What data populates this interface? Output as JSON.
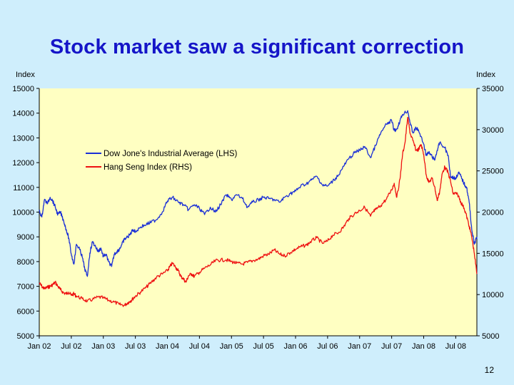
{
  "slide": {
    "title": "Stock market saw a significant correction",
    "page_number": "12"
  },
  "colors": {
    "background": "#cfeefc",
    "title": "#1515c8",
    "plot_background": "#ffffc2",
    "dow": "#1a2fd6",
    "hsi": "#ee1111"
  },
  "chart_data": {
    "type": "line",
    "title": "",
    "left_axis": {
      "label": "Index",
      "ylim": [
        5000,
        15000
      ],
      "ticks": [
        5000,
        6000,
        7000,
        8000,
        9000,
        10000,
        11000,
        12000,
        13000,
        14000,
        15000
      ]
    },
    "right_axis": {
      "label": "Index",
      "ylim": [
        5000,
        35000
      ],
      "ticks": [
        5000,
        10000,
        15000,
        20000,
        25000,
        30000,
        35000
      ]
    },
    "x_axis": {
      "tick_labels": [
        "Jan 02",
        "Jul 02",
        "Jan 03",
        "Jul 03",
        "Jan 04",
        "Jul 04",
        "Jan 05",
        "Jul 05",
        "Jan 06",
        "Jul 06",
        "Jan 07",
        "Jul 07",
        "Jan 08",
        "Jul 08"
      ],
      "tick_values": [
        2002.0,
        2002.5,
        2003.0,
        2003.5,
        2004.0,
        2004.5,
        2005.0,
        2005.5,
        2006.0,
        2006.5,
        2007.0,
        2007.5,
        2008.0,
        2008.5
      ],
      "xlim": [
        2002.0,
        2008.83
      ]
    },
    "legend": {
      "placement": "upper-left"
    },
    "grid": false,
    "series": [
      {
        "name": "Dow Jone's Industrial Average (LHS)",
        "axis": "left",
        "points": [
          [
            2002.0,
            10050
          ],
          [
            2002.04,
            9800
          ],
          [
            2002.08,
            10500
          ],
          [
            2002.13,
            10350
          ],
          [
            2002.17,
            10600
          ],
          [
            2002.21,
            10450
          ],
          [
            2002.25,
            10200
          ],
          [
            2002.29,
            9900
          ],
          [
            2002.33,
            10000
          ],
          [
            2002.38,
            9650
          ],
          [
            2002.42,
            9300
          ],
          [
            2002.46,
            8950
          ],
          [
            2002.5,
            8300
          ],
          [
            2002.54,
            7900
          ],
          [
            2002.58,
            8700
          ],
          [
            2002.63,
            8500
          ],
          [
            2002.67,
            8200
          ],
          [
            2002.71,
            7700
          ],
          [
            2002.75,
            7400
          ],
          [
            2002.79,
            8350
          ],
          [
            2002.83,
            8800
          ],
          [
            2002.88,
            8600
          ],
          [
            2002.92,
            8400
          ],
          [
            2002.96,
            8550
          ],
          [
            2003.0,
            8200
          ],
          [
            2003.04,
            8300
          ],
          [
            2003.08,
            8000
          ],
          [
            2003.13,
            7800
          ],
          [
            2003.17,
            8300
          ],
          [
            2003.21,
            8400
          ],
          [
            2003.25,
            8500
          ],
          [
            2003.29,
            8700
          ],
          [
            2003.33,
            8900
          ],
          [
            2003.38,
            9000
          ],
          [
            2003.42,
            9100
          ],
          [
            2003.46,
            9300
          ],
          [
            2003.5,
            9200
          ],
          [
            2003.58,
            9400
          ],
          [
            2003.67,
            9500
          ],
          [
            2003.75,
            9600
          ],
          [
            2003.83,
            9700
          ],
          [
            2003.92,
            10000
          ],
          [
            2004.0,
            10450
          ],
          [
            2004.08,
            10600
          ],
          [
            2004.17,
            10400
          ],
          [
            2004.25,
            10300
          ],
          [
            2004.33,
            10100
          ],
          [
            2004.42,
            10300
          ],
          [
            2004.5,
            10150
          ],
          [
            2004.58,
            9900
          ],
          [
            2004.67,
            10200
          ],
          [
            2004.75,
            10000
          ],
          [
            2004.83,
            10300
          ],
          [
            2004.92,
            10700
          ],
          [
            2005.0,
            10500
          ],
          [
            2005.08,
            10700
          ],
          [
            2005.17,
            10550
          ],
          [
            2005.25,
            10200
          ],
          [
            2005.33,
            10400
          ],
          [
            2005.42,
            10500
          ],
          [
            2005.5,
            10600
          ],
          [
            2005.58,
            10550
          ],
          [
            2005.67,
            10500
          ],
          [
            2005.75,
            10400
          ],
          [
            2005.83,
            10600
          ],
          [
            2005.92,
            10750
          ],
          [
            2006.0,
            10850
          ],
          [
            2006.08,
            11050
          ],
          [
            2006.17,
            11150
          ],
          [
            2006.25,
            11300
          ],
          [
            2006.33,
            11450
          ],
          [
            2006.42,
            11100
          ],
          [
            2006.5,
            11050
          ],
          [
            2006.58,
            11250
          ],
          [
            2006.67,
            11500
          ],
          [
            2006.75,
            11850
          ],
          [
            2006.83,
            12150
          ],
          [
            2006.92,
            12400
          ],
          [
            2007.0,
            12500
          ],
          [
            2007.08,
            12650
          ],
          [
            2007.17,
            12200
          ],
          [
            2007.25,
            12700
          ],
          [
            2007.33,
            13200
          ],
          [
            2007.42,
            13550
          ],
          [
            2007.5,
            13700
          ],
          [
            2007.54,
            13300
          ],
          [
            2007.58,
            13350
          ],
          [
            2007.63,
            13700
          ],
          [
            2007.67,
            13950
          ],
          [
            2007.75,
            14100
          ],
          [
            2007.79,
            13600
          ],
          [
            2007.83,
            13200
          ],
          [
            2007.88,
            13400
          ],
          [
            2007.92,
            13300
          ],
          [
            2008.0,
            12750
          ],
          [
            2008.04,
            12300
          ],
          [
            2008.08,
            12400
          ],
          [
            2008.13,
            12250
          ],
          [
            2008.17,
            12100
          ],
          [
            2008.21,
            12500
          ],
          [
            2008.25,
            12800
          ],
          [
            2008.33,
            12600
          ],
          [
            2008.38,
            12300
          ],
          [
            2008.42,
            11450
          ],
          [
            2008.46,
            11400
          ],
          [
            2008.5,
            11350
          ],
          [
            2008.54,
            11600
          ],
          [
            2008.58,
            11450
          ],
          [
            2008.63,
            11150
          ],
          [
            2008.67,
            11000
          ],
          [
            2008.71,
            10400
          ],
          [
            2008.75,
            9300
          ],
          [
            2008.79,
            8700
          ],
          [
            2008.83,
            9000
          ]
        ]
      },
      {
        "name": "Hang Seng Index (RHS)",
        "axis": "right",
        "points": [
          [
            2002.0,
            11400
          ],
          [
            2002.04,
            11000
          ],
          [
            2002.08,
            10700
          ],
          [
            2002.13,
            10900
          ],
          [
            2002.17,
            11000
          ],
          [
            2002.21,
            11200
          ],
          [
            2002.25,
            11500
          ],
          [
            2002.29,
            11000
          ],
          [
            2002.33,
            10600
          ],
          [
            2002.38,
            10200
          ],
          [
            2002.42,
            10100
          ],
          [
            2002.46,
            10300
          ],
          [
            2002.5,
            9900
          ],
          [
            2002.54,
            10100
          ],
          [
            2002.58,
            9800
          ],
          [
            2002.67,
            9500
          ],
          [
            2002.75,
            9200
          ],
          [
            2002.83,
            9400
          ],
          [
            2002.92,
            9700
          ],
          [
            2003.0,
            9600
          ],
          [
            2003.08,
            9300
          ],
          [
            2003.17,
            9100
          ],
          [
            2003.25,
            8800
          ],
          [
            2003.33,
            8700
          ],
          [
            2003.38,
            9000
          ],
          [
            2003.42,
            9200
          ],
          [
            2003.46,
            9500
          ],
          [
            2003.5,
            9800
          ],
          [
            2003.58,
            10300
          ],
          [
            2003.67,
            10900
          ],
          [
            2003.75,
            11500
          ],
          [
            2003.83,
            12100
          ],
          [
            2003.92,
            12500
          ],
          [
            2004.0,
            12900
          ],
          [
            2004.04,
            13400
          ],
          [
            2004.08,
            13800
          ],
          [
            2004.13,
            13300
          ],
          [
            2004.17,
            12900
          ],
          [
            2004.21,
            12200
          ],
          [
            2004.25,
            11900
          ],
          [
            2004.29,
            11500
          ],
          [
            2004.33,
            12300
          ],
          [
            2004.38,
            12500
          ],
          [
            2004.42,
            12200
          ],
          [
            2004.5,
            12700
          ],
          [
            2004.58,
            13200
          ],
          [
            2004.67,
            13600
          ],
          [
            2004.75,
            14100
          ],
          [
            2004.83,
            14200
          ],
          [
            2004.92,
            14200
          ],
          [
            2005.0,
            14000
          ],
          [
            2005.08,
            13800
          ],
          [
            2005.17,
            13700
          ],
          [
            2005.25,
            13900
          ],
          [
            2005.33,
            14100
          ],
          [
            2005.42,
            14300
          ],
          [
            2005.5,
            14700
          ],
          [
            2005.58,
            14900
          ],
          [
            2005.67,
            15400
          ],
          [
            2005.75,
            14900
          ],
          [
            2005.83,
            14700
          ],
          [
            2005.92,
            15100
          ],
          [
            2006.0,
            15500
          ],
          [
            2006.08,
            15800
          ],
          [
            2006.17,
            16000
          ],
          [
            2006.25,
            16500
          ],
          [
            2006.33,
            16900
          ],
          [
            2006.42,
            16200
          ],
          [
            2006.5,
            16500
          ],
          [
            2006.58,
            17200
          ],
          [
            2006.67,
            17500
          ],
          [
            2006.75,
            18200
          ],
          [
            2006.83,
            19200
          ],
          [
            2006.92,
            19800
          ],
          [
            2007.0,
            20200
          ],
          [
            2007.08,
            20600
          ],
          [
            2007.17,
            19500
          ],
          [
            2007.21,
            20000
          ],
          [
            2007.25,
            20300
          ],
          [
            2007.33,
            20800
          ],
          [
            2007.42,
            21600
          ],
          [
            2007.5,
            22700
          ],
          [
            2007.54,
            23500
          ],
          [
            2007.58,
            21800
          ],
          [
            2007.63,
            24000
          ],
          [
            2007.67,
            27000
          ],
          [
            2007.71,
            28500
          ],
          [
            2007.75,
            31500
          ],
          [
            2007.79,
            29500
          ],
          [
            2007.83,
            28700
          ],
          [
            2007.88,
            27500
          ],
          [
            2007.92,
            27600
          ],
          [
            2007.96,
            28200
          ],
          [
            2008.0,
            27000
          ],
          [
            2008.04,
            24500
          ],
          [
            2008.08,
            23600
          ],
          [
            2008.13,
            24100
          ],
          [
            2008.17,
            23100
          ],
          [
            2008.21,
            21400
          ],
          [
            2008.25,
            22500
          ],
          [
            2008.29,
            24700
          ],
          [
            2008.33,
            25500
          ],
          [
            2008.38,
            24800
          ],
          [
            2008.42,
            23700
          ],
          [
            2008.46,
            22200
          ],
          [
            2008.5,
            22300
          ],
          [
            2008.54,
            22000
          ],
          [
            2008.58,
            21200
          ],
          [
            2008.63,
            20500
          ],
          [
            2008.67,
            19500
          ],
          [
            2008.71,
            18300
          ],
          [
            2008.75,
            17000
          ],
          [
            2008.79,
            15000
          ],
          [
            2008.83,
            12500
          ]
        ]
      }
    ]
  }
}
